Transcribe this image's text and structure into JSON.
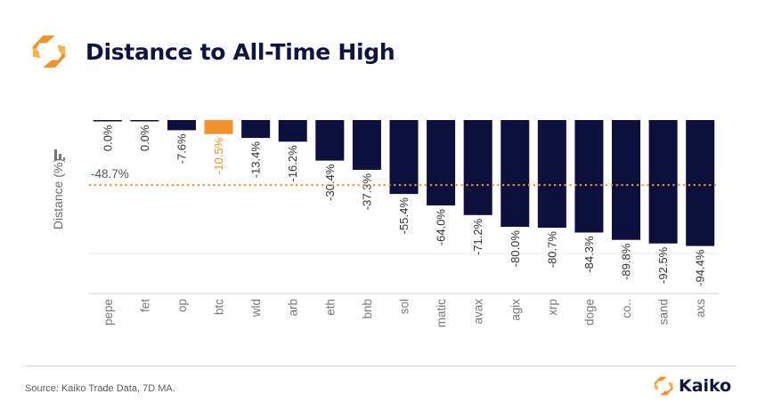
{
  "header": {
    "title": "Distance to All-Time High",
    "logo_icon": "kaiko-logo-icon"
  },
  "footer": {
    "source": "Source: Kaiko Trade Data, 7D MA.",
    "brand_name": "Kaiko"
  },
  "colors": {
    "bar": "#0d0f3d",
    "highlight": "#f2922c",
    "reference_line": "#f2922c",
    "label": "#333333",
    "axis_text": "#777777"
  },
  "chart_data": {
    "type": "bar",
    "title": "Distance to All-Time High",
    "ylabel": "Distance (%)",
    "xlabel": "",
    "categories": [
      "pepe",
      "fet",
      "op",
      "btc",
      "wld",
      "arb",
      "eth",
      "bnb",
      "sol",
      "matic",
      "avax",
      "agix",
      "xrp",
      "doge",
      "co..",
      "sand",
      "axs"
    ],
    "values": [
      0.0,
      0.0,
      -7.6,
      -10.5,
      -13.4,
      -16.2,
      -30.4,
      -37.3,
      -55.4,
      -64.0,
      -71.2,
      -80.0,
      -80.7,
      -84.3,
      -89.8,
      -92.5,
      -94.4
    ],
    "value_labels": [
      "0.0%",
      "0.0%",
      "-7.6%",
      "-10.5%",
      "-13.4%",
      "-16.2%",
      "-30.4%",
      "-37.3%",
      "-55.4%",
      "-64.0%",
      "-71.2%",
      "-80.0%",
      "-80.7%",
      "-84.3%",
      "-89.8%",
      "-92.5%",
      "-94.4%"
    ],
    "highlight_category": "btc",
    "reference_line": {
      "value": -48.7,
      "label": "-48.7%"
    },
    "ylim": [
      -130,
      0
    ],
    "grid": true,
    "legend": "none"
  }
}
